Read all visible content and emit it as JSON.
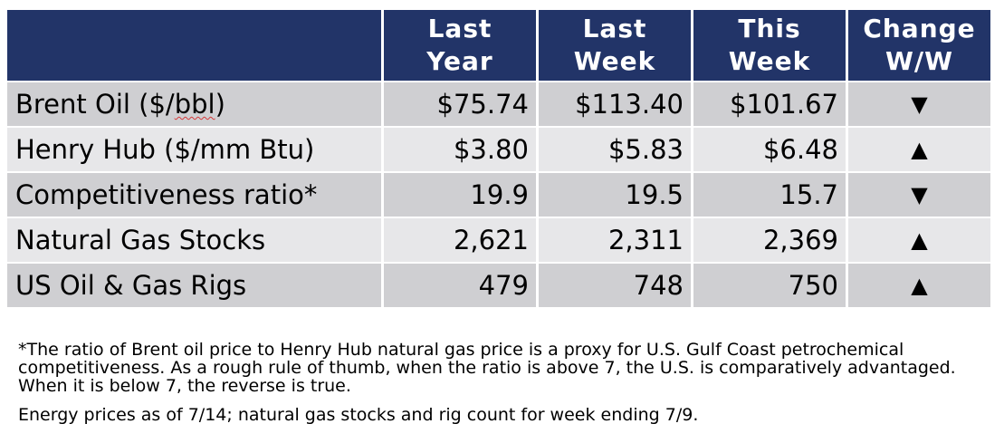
{
  "table": {
    "headers": [
      "",
      "Last\nYear",
      "Last\nWeek",
      "This\nWeek",
      "Change\nW/W"
    ],
    "rows": [
      {
        "label_pre": "Brent Oil ($/",
        "label_mid": "bbl",
        "label_post": ")",
        "last_year": "$75.74",
        "last_week": "$113.40",
        "this_week": "$101.67",
        "change": "▼"
      },
      {
        "label": "Henry Hub ($/mm Btu)",
        "last_year": "$3.80",
        "last_week": "$5.83",
        "this_week": "$6.48",
        "change": "▲"
      },
      {
        "label": "Competitiveness ratio*",
        "last_year": "19.9",
        "last_week": "19.5",
        "this_week": "15.7",
        "change": "▼"
      },
      {
        "label": "Natural Gas Stocks",
        "last_year": "2,621",
        "last_week": "2,311",
        "this_week": "2,369",
        "change": "▲"
      },
      {
        "label": "US Oil & Gas Rigs",
        "last_year": "479",
        "last_week": "748",
        "this_week": "750",
        "change": "▲"
      }
    ]
  },
  "colors": {
    "header_bg": "#223468",
    "row_odd": "#cfcfd2",
    "row_even": "#e7e7e9"
  },
  "footnotes": {
    "note1": "*The ratio of Brent oil price to Henry Hub natural gas price is a proxy for U.S. Gulf Coast petrochemical competitiveness. As a rough rule of thumb, when the ratio is above 7, the U.S. is comparatively advantaged. When it is below 7, the reverse is true.",
    "note2": "Energy prices as of 7/14; natural gas stocks and rig count for week ending 7/9."
  }
}
